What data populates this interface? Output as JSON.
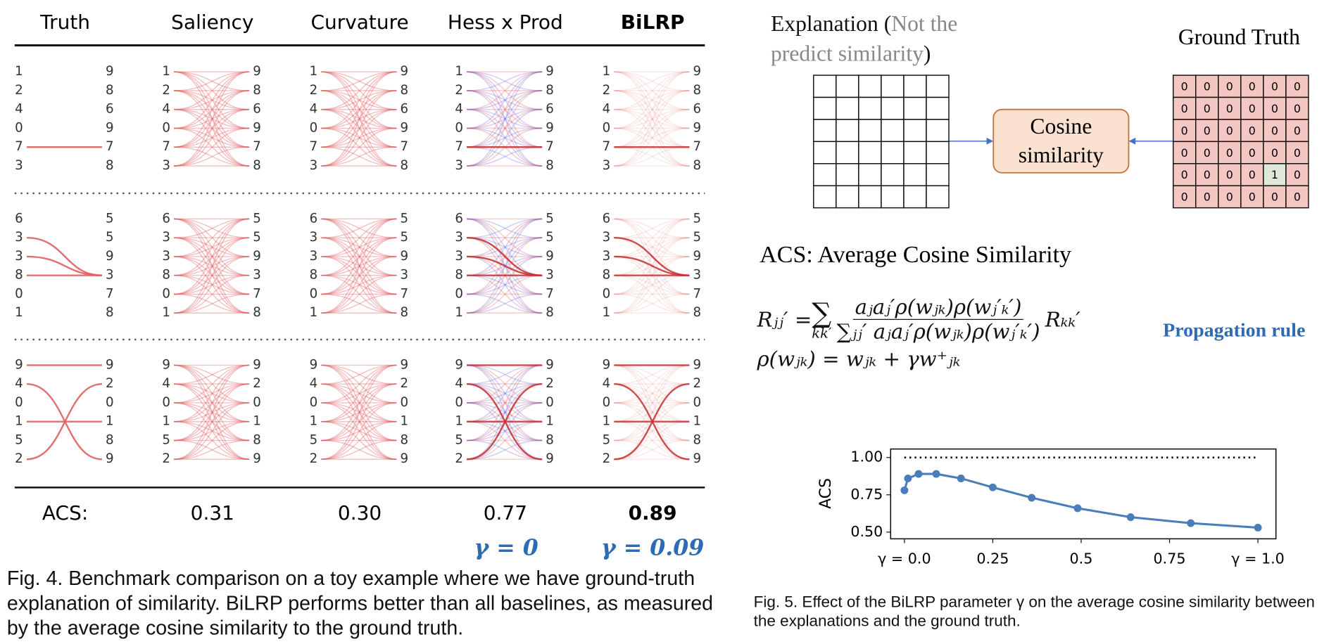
{
  "fig4": {
    "columns": [
      "Truth",
      "Saliency",
      "Curvature",
      "Hess x Prod",
      "BiLRP"
    ],
    "rows": [
      {
        "left": [
          "1",
          "2",
          "4",
          "0",
          "7",
          "3"
        ],
        "right": [
          "9",
          "8",
          "6",
          "9",
          "7",
          "8"
        ]
      },
      {
        "left": [
          "6",
          "3",
          "3",
          "8",
          "0",
          "1"
        ],
        "right": [
          "5",
          "5",
          "9",
          "3",
          "7",
          "8"
        ]
      },
      {
        "left": [
          "9",
          "4",
          "0",
          "1",
          "5",
          "2"
        ],
        "right": [
          "9",
          "2",
          "0",
          "1",
          "8",
          "9"
        ]
      }
    ],
    "acs_label": "ACS:",
    "acs_values": [
      "0.31",
      "0.30",
      "0.77",
      "0.89"
    ],
    "gamma_labels": [
      "γ = 0",
      "γ = 0.09"
    ],
    "caption": "Fig. 4. Benchmark comparison on a toy example where we have ground-truth explanation of similarity. BiLRP performs better than all baselines, as measured by the average cosine similarity to the ground truth."
  },
  "fig5": {
    "explanation_label": "Explanation (",
    "explanation_note": "Not the predict similarity",
    "explanation_close": ")",
    "ground_truth_label": "Ground Truth",
    "ground_truth_grid": [
      [
        0,
        0,
        0,
        0,
        0,
        0
      ],
      [
        0,
        0,
        0,
        0,
        0,
        0
      ],
      [
        0,
        0,
        0,
        0,
        0,
        0
      ],
      [
        0,
        0,
        0,
        0,
        0,
        0
      ],
      [
        0,
        0,
        0,
        0,
        1,
        0
      ],
      [
        0,
        0,
        0,
        0,
        0,
        0
      ]
    ],
    "cosine_label": "Cosine similarity",
    "acs_title": "ACS: Average Cosine Similarity",
    "formula": {
      "lhs": "Rⱼⱼ′ =",
      "sum": "∑",
      "sum_index": "kk′",
      "numerator": "aⱼaⱼ′ρ(wⱼₖ)ρ(wⱼ′ₖ′)",
      "denominator": "∑ⱼⱼ′ aⱼaⱼ′ρ(wⱼₖ)ρ(wⱼ′ₖ′)",
      "rhs": "Rₖₖ′",
      "rule": "ρ(wⱼₖ) = wⱼₖ + γw⁺ⱼₖ"
    },
    "propagation_label": "Propagation rule",
    "caption": "Fig. 5. Effect of the BiLRP parameter γ on the average cosine similarity between the explanations and the ground truth."
  },
  "chart_data": {
    "type": "line",
    "y_label": "ACS",
    "x": [
      0,
      0.01,
      0.04,
      0.09,
      0.16,
      0.25,
      0.36,
      0.49,
      0.64,
      0.81,
      1.0
    ],
    "series": [
      {
        "color": "#4a7ebb",
        "values": [
          0.78,
          0.86,
          0.89,
          0.89,
          0.86,
          0.8,
          0.73,
          0.66,
          0.6,
          0.56,
          0.53
        ]
      }
    ],
    "reference_line": 1.0,
    "xlim": [
      -0.039,
      1.051
    ],
    "ylim": [
      0.455,
      1.057
    ],
    "xticks": [
      {
        "value": 0,
        "label": "γ = 0.0"
      },
      0.25,
      0.5,
      0.75,
      {
        "value": 1,
        "label": "γ = 1.0"
      }
    ],
    "yticks": [
      {
        "value": 0.5,
        "label": "0.50"
      },
      0.75,
      {
        "value": 1,
        "label": "1.00"
      }
    ]
  }
}
